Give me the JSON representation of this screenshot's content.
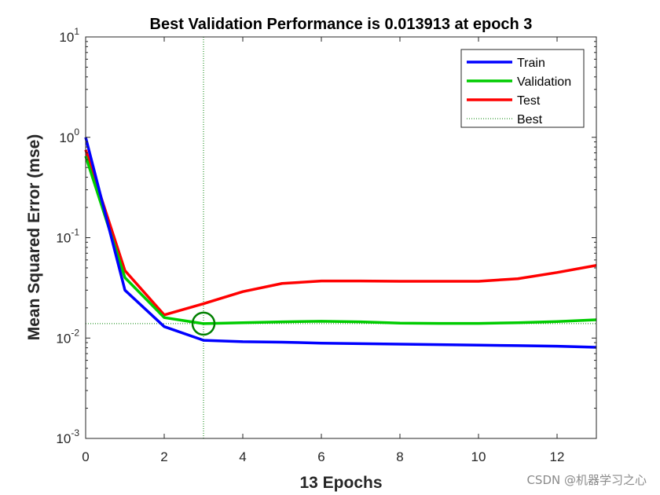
{
  "chart_data": {
    "type": "line",
    "title": "Best Validation Performance is 0.013913 at epoch 3",
    "xlabel": "13 Epochs",
    "ylabel": "Mean Squared Error  (mse)",
    "xscale": "linear",
    "yscale": "log",
    "xlim": [
      0,
      13
    ],
    "ylim": [
      0.001,
      10
    ],
    "x_ticks": [
      "0",
      "2",
      "4",
      "6",
      "8",
      "10",
      "12"
    ],
    "y_ticks": [
      {
        "base": "10",
        "exp": "-3"
      },
      {
        "base": "10",
        "exp": "-2"
      },
      {
        "base": "10",
        "exp": "-1"
      },
      {
        "base": "10",
        "exp": "0"
      },
      {
        "base": "10",
        "exp": "1"
      }
    ],
    "x": [
      0,
      1,
      2,
      3,
      4,
      5,
      6,
      7,
      8,
      9,
      10,
      11,
      12,
      13
    ],
    "series": [
      {
        "name": "Train",
        "color": "#0000ff",
        "values": [
          1.0,
          0.03,
          0.013,
          0.0095,
          0.0092,
          0.0091,
          0.0089,
          0.0088,
          0.0087,
          0.0086,
          0.0085,
          0.0084,
          0.0083,
          0.0081
        ]
      },
      {
        "name": "Validation",
        "color": "#00cc00",
        "values": [
          0.65,
          0.04,
          0.016,
          0.013913,
          0.0142,
          0.0145,
          0.0147,
          0.0145,
          0.0141,
          0.014,
          0.014,
          0.0142,
          0.0146,
          0.0152
        ]
      },
      {
        "name": "Test",
        "color": "#ff0000",
        "values": [
          0.75,
          0.047,
          0.017,
          0.022,
          0.029,
          0.035,
          0.037,
          0.037,
          0.0368,
          0.0368,
          0.0368,
          0.039,
          0.045,
          0.053
        ]
      }
    ],
    "best": {
      "name": "Best",
      "epoch": 3,
      "value": 0.013913,
      "color": "#008000"
    },
    "legend_position": "top-right",
    "grid": false
  },
  "watermark": "CSDN @机器学习之心"
}
